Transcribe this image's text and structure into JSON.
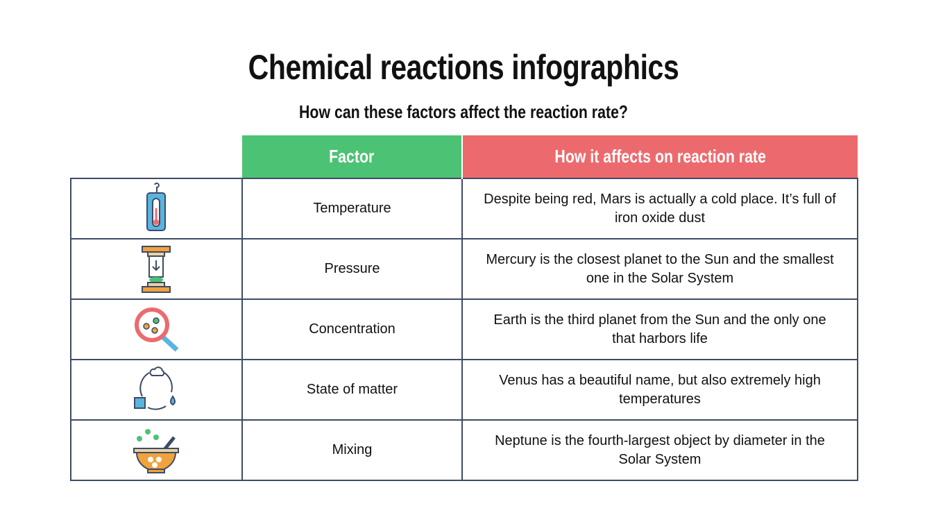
{
  "title": "Chemical reactions infographics",
  "subtitle": "How can these factors affect the reaction rate?",
  "table": {
    "header": [
      "Factor",
      "How it affects on reaction rate"
    ],
    "rows": [
      [
        "Temperature",
        "Despite being red, Mars is actually a cold place. It’s full of iron oxide dust"
      ],
      [
        "Pressure",
        "Mercury is the closest planet to the Sun and the smallest one in the Solar System"
      ],
      [
        "Concentration",
        "Earth is the third planet from the Sun and the only one that harbors life"
      ],
      [
        "State of matter",
        "Venus has a beautiful name, but also extremely high temperatures"
      ],
      [
        "Mixing",
        "Neptune is the fourth-largest object by diameter in the Solar System"
      ]
    ]
  }
}
